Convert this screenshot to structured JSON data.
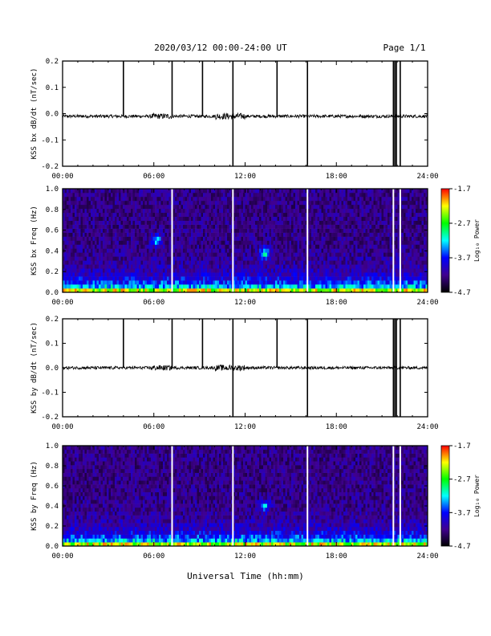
{
  "header": {
    "title": "2020/03/12  00:00-24:00 UT",
    "page": "Page 1/1"
  },
  "footer": {
    "xlabel": "Universal Time (hh:mm)"
  },
  "time_ticks": [
    "00:00",
    "06:00",
    "12:00",
    "18:00",
    "24:00"
  ],
  "colorbar": {
    "label": "Log₁₀ Power",
    "ticks": [
      "-1.7",
      "-2.7",
      "-3.7",
      "-4.7"
    ],
    "colors": [
      "#ff0000",
      "#ffff00",
      "#00ff00",
      "#00ffff",
      "#0000ff",
      "#400090",
      "#000000"
    ]
  },
  "chart_data": [
    {
      "type": "line",
      "title": "",
      "xlabel": "",
      "ylabel": "KSS bx dB/dt (nT/sec)",
      "xlim": [
        0,
        24
      ],
      "ylim": [
        -0.2,
        0.2
      ],
      "yticks": [
        "0.2",
        "0.1",
        "0.0",
        "-0.1",
        "-0.2"
      ],
      "baseline": -0.01,
      "noise_amplitude": 0.006,
      "spikes": [
        {
          "x": 4.0,
          "ymin": -0.01,
          "ymax": 0.2
        },
        {
          "x": 7.2,
          "ymin": -0.01,
          "ymax": 0.2
        },
        {
          "x": 9.2,
          "ymin": -0.01,
          "ymax": 0.2
        },
        {
          "x": 11.2,
          "ymin": -0.2,
          "ymax": 0.2
        },
        {
          "x": 14.1,
          "ymin": -0.01,
          "ymax": 0.2
        },
        {
          "x": 16.1,
          "ymin": -0.2,
          "ymax": 0.2
        },
        {
          "x": 21.75,
          "ymin": -0.2,
          "ymax": 0.2
        },
        {
          "x": 21.85,
          "ymin": -0.2,
          "ymax": 0.2
        },
        {
          "x": 21.95,
          "ymin": -0.2,
          "ymax": 0.2
        },
        {
          "x": 22.2,
          "ymin": -0.2,
          "ymax": 0.2
        }
      ]
    },
    {
      "type": "heatmap",
      "title": "",
      "xlabel": "",
      "ylabel": "KSS bx Freq (Hz)",
      "xlim": [
        0,
        24
      ],
      "ylim": [
        0,
        1.0
      ],
      "yticks": [
        "1.0",
        "0.8",
        "0.6",
        "0.4",
        "0.2",
        "0.0"
      ],
      "zlabel": "Log₁₀ Power",
      "zlim": [
        -4.7,
        -1.7
      ],
      "gaps_hours": [
        7.2,
        11.2,
        16.1,
        21.75,
        22.2
      ],
      "features": [
        {
          "x": 13.3,
          "y": 0.38
        },
        {
          "x": 6.2,
          "y": 0.5
        }
      ]
    },
    {
      "type": "line",
      "title": "",
      "xlabel": "",
      "ylabel": "KSS by dB/dt (nT/sec)",
      "xlim": [
        0,
        24
      ],
      "ylim": [
        -0.2,
        0.2
      ],
      "yticks": [
        "0.2",
        "0.1",
        "0.0",
        "-0.1",
        "-0.2"
      ],
      "baseline": 0.0,
      "noise_amplitude": 0.006,
      "spikes": [
        {
          "x": 4.0,
          "ymin": 0.0,
          "ymax": 0.2
        },
        {
          "x": 7.2,
          "ymin": 0.0,
          "ymax": 0.2
        },
        {
          "x": 9.2,
          "ymin": 0.0,
          "ymax": 0.2
        },
        {
          "x": 11.2,
          "ymin": -0.2,
          "ymax": 0.2
        },
        {
          "x": 14.1,
          "ymin": 0.0,
          "ymax": 0.2
        },
        {
          "x": 16.1,
          "ymin": -0.2,
          "ymax": 0.2
        },
        {
          "x": 21.75,
          "ymin": -0.2,
          "ymax": 0.2
        },
        {
          "x": 21.85,
          "ymin": -0.2,
          "ymax": 0.2
        },
        {
          "x": 21.95,
          "ymin": -0.2,
          "ymax": 0.2
        },
        {
          "x": 22.2,
          "ymin": -0.2,
          "ymax": 0.2
        }
      ]
    },
    {
      "type": "heatmap",
      "title": "",
      "xlabel": "",
      "ylabel": "KSS by Freq (Hz)",
      "xlim": [
        0,
        24
      ],
      "ylim": [
        0,
        1.0
      ],
      "yticks": [
        "1.0",
        "0.8",
        "0.6",
        "0.4",
        "0.2",
        "0.0"
      ],
      "zlabel": "Log₁₀ Power",
      "zlim": [
        -4.7,
        -1.7
      ],
      "gaps_hours": [
        7.2,
        11.2,
        16.1,
        21.75,
        22.2
      ],
      "features": [
        {
          "x": 13.3,
          "y": 0.4
        }
      ]
    }
  ]
}
